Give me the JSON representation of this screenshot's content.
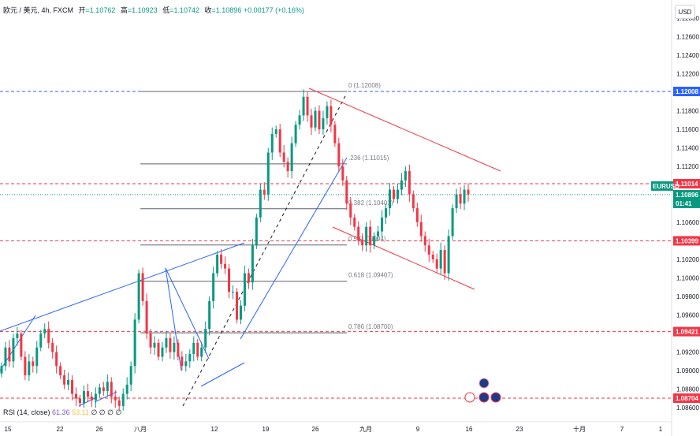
{
  "header": {
    "symbol": "欧元 / 美元, 4h, FXCM",
    "open_label": "开",
    "open": "=1.10762",
    "high_label": "高",
    "high": "=1.10923",
    "low_label": "低",
    "low": "=1.10742",
    "close_label": "收",
    "close": "=1.10896",
    "change": "+0.00177 (+0.16%)"
  },
  "currency_button": "USD",
  "price_axis": {
    "ticks": [
      "1.12800",
      "1.12600",
      "1.12400",
      "1.12200",
      "1.12000",
      "1.11800",
      "1.11600",
      "1.11400",
      "1.11200",
      "1.11000",
      "1.10800",
      "1.10600",
      "1.10400",
      "1.10200",
      "1.10000",
      "1.09800",
      "1.09600",
      "1.09400",
      "1.09200",
      "1.09000",
      "1.08800",
      "1.08600"
    ],
    "tags": [
      {
        "text": "1.12008",
        "color": "#2962ff"
      },
      {
        "text": "1.11014",
        "color": "#f23645"
      },
      {
        "text": "EURUSD",
        "color": "#089981"
      },
      {
        "text": "1.10896",
        "color": "#089981"
      },
      {
        "text": "01:41",
        "color": "#089981"
      },
      {
        "text": "1.10399",
        "color": "#f23645"
      },
      {
        "text": "1.09421",
        "color": "#f23645"
      },
      {
        "text": "1.08704",
        "color": "#f23645"
      }
    ]
  },
  "time_axis": [
    "15",
    "22",
    "26",
    "八月",
    "12",
    "19",
    "26",
    "九月",
    "9",
    "16",
    "23",
    "十月",
    "7",
    "1"
  ],
  "fib_levels": [
    {
      "label": "0 (1.12008)"
    },
    {
      "label": ".236 (1.11015)"
    },
    {
      "label": "0.382 (1.10401)"
    },
    {
      "label": "0.5 (1.09904)"
    },
    {
      "label": "0.618 (1.09407)"
    },
    {
      "label": "0.786 (1.08700)"
    }
  ],
  "rsi": {
    "label": "RSI (14, close)",
    "value1": "61.36",
    "value2": "53.11",
    "extra": "∅ ∅ ∅ ∅"
  },
  "colors": {
    "up": "#089981",
    "down": "#f23645",
    "trend_blue": "#2962ff",
    "channel_red": "#f23645",
    "fib_gray": "#787b86"
  },
  "chart_data": {
    "type": "candlestick",
    "symbol": "EURUSD",
    "timeframe": "4h",
    "ylim": [
      1.0855,
      1.1295
    ],
    "current_price": 1.10896,
    "horizontal_levels": [
      1.12008,
      1.11014,
      1.10399,
      1.09421,
      1.08704
    ],
    "fibonacci": {
      "high": 1.12008,
      "low": 1.087,
      "levels": [
        0,
        0.236,
        0.382,
        0.5,
        0.618,
        0.786
      ]
    },
    "closes": [
      1.0905,
      1.0925,
      1.091,
      1.0935,
      1.094,
      1.0915,
      1.0895,
      1.091,
      1.0905,
      1.0925,
      1.094,
      1.0945,
      1.093,
      1.092,
      1.0905,
      1.0895,
      1.0885,
      1.089,
      1.0875,
      1.087,
      1.0865,
      1.0878,
      1.0872,
      1.0868,
      1.0875,
      1.0882,
      1.0878,
      1.0888,
      1.0872,
      1.0868,
      1.0862,
      1.0875,
      1.0885,
      1.0905,
      1.0955,
      1.1005,
      1.0975,
      1.094,
      1.0925,
      1.093,
      1.0915,
      1.0925,
      1.0935,
      1.092,
      1.093,
      1.0915,
      1.0905,
      1.091,
      1.0918,
      1.093,
      1.0915,
      1.0925,
      1.0945,
      1.0975,
      1.1005,
      1.1025,
      1.1015,
      1.101,
      1.0985,
      1.0985,
      1.0955,
      1.097,
      1.1005,
      1.0995,
      1.1035,
      1.1065,
      1.1095,
      1.109,
      1.1135,
      1.1155,
      1.116,
      1.1135,
      1.1125,
      1.1115,
      1.1145,
      1.1165,
      1.1175,
      1.1195,
      1.1175,
      1.1162,
      1.118,
      1.116,
      1.1172,
      1.1185,
      1.1165,
      1.1145,
      1.112,
      1.1105,
      1.108,
      1.1065,
      1.1055,
      1.104,
      1.1035,
      1.1055,
      1.1035,
      1.1045,
      1.105,
      1.1065,
      1.1075,
      1.1095,
      1.1085,
      1.1095,
      1.1105,
      1.1115,
      1.109,
      1.1075,
      1.106,
      1.1045,
      1.1035,
      1.1025,
      1.102,
      1.101,
      1.103,
      1.1005,
      1.1045,
      1.1075,
      1.109,
      1.108,
      1.1095,
      1.109
    ]
  }
}
